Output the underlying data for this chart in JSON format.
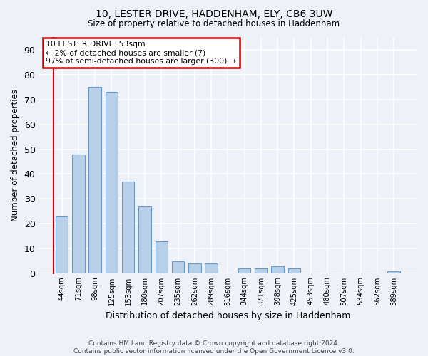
{
  "title_line1": "10, LESTER DRIVE, HADDENHAM, ELY, CB6 3UW",
  "title_line2": "Size of property relative to detached houses in Haddenham",
  "xlabel": "Distribution of detached houses by size in Haddenham",
  "ylabel": "Number of detached properties",
  "bar_color": "#b8d0e8",
  "bar_edge_color": "#6699cc",
  "categories": [
    "44sqm",
    "71sqm",
    "98sqm",
    "125sqm",
    "153sqm",
    "180sqm",
    "207sqm",
    "235sqm",
    "262sqm",
    "289sqm",
    "316sqm",
    "344sqm",
    "371sqm",
    "398sqm",
    "425sqm",
    "453sqm",
    "480sqm",
    "507sqm",
    "534sqm",
    "562sqm",
    "589sqm"
  ],
  "values": [
    23,
    48,
    75,
    73,
    37,
    27,
    13,
    5,
    4,
    4,
    0,
    2,
    2,
    3,
    2,
    0,
    0,
    0,
    0,
    0,
    1
  ],
  "ylim": [
    0,
    95
  ],
  "yticks": [
    0,
    10,
    20,
    30,
    40,
    50,
    60,
    70,
    80,
    90
  ],
  "annotation_lines": [
    "10 LESTER DRIVE: 53sqm",
    "← 2% of detached houses are smaller (7)",
    "97% of semi-detached houses are larger (300) →"
  ],
  "annotation_box_facecolor": "#ffffff",
  "annotation_box_edgecolor": "#cc0000",
  "footer_line1": "Contains HM Land Registry data © Crown copyright and database right 2024.",
  "footer_line2": "Contains public sector information licensed under the Open Government Licence v3.0.",
  "background_color": "#eef2f8",
  "grid_color": "#ffffff"
}
